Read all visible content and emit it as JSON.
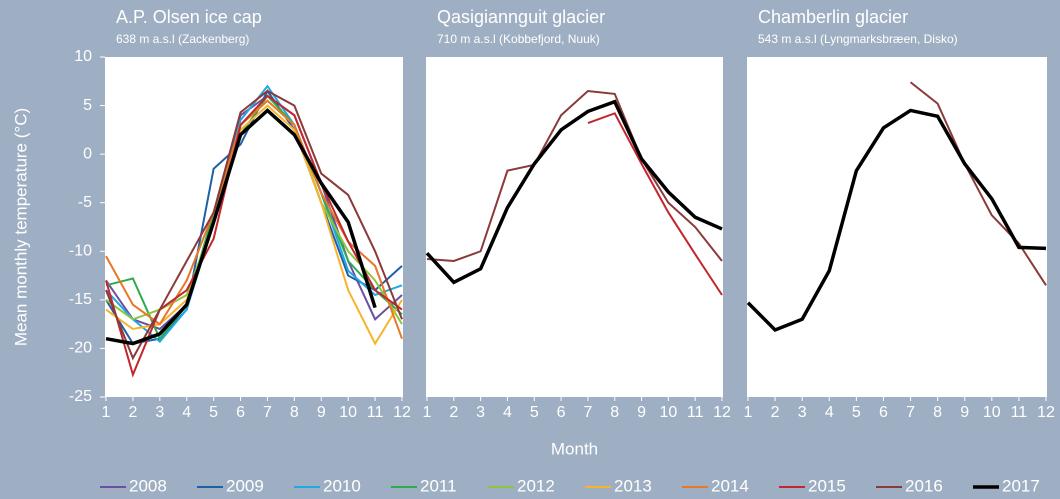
{
  "chart_data": [
    {
      "type": "line",
      "title": "A.P. Olsen ice cap",
      "subtitle": "638 m a.s.l (Zackenberg)",
      "y_label": "Mean monthly temperature (°C)",
      "x": [
        1,
        2,
        3,
        4,
        5,
        6,
        7,
        8,
        9,
        10,
        11,
        12
      ],
      "xlim": [
        1,
        12
      ],
      "xticks": [
        1,
        2,
        3,
        4,
        5,
        6,
        7,
        8,
        9,
        10,
        11,
        12
      ],
      "ylim": [
        -25,
        10
      ],
      "yticks": [
        10,
        5,
        0,
        -5,
        -10,
        -15,
        -20,
        -25
      ],
      "series": [
        {
          "name": "2008",
          "color": "#6a4fa3",
          "values": [
            -13,
            -17,
            -18,
            -15.5,
            -7,
            4,
            6,
            4,
            -3,
            -11,
            -17,
            -14.5
          ]
        },
        {
          "name": "2009",
          "color": "#1f5fa8",
          "values": [
            -15,
            -19.5,
            -19,
            -16,
            -1.5,
            1,
            6.5,
            2.5,
            -5,
            -12.5,
            -14,
            -11.5
          ]
        },
        {
          "name": "2010",
          "color": "#22a8e0",
          "values": [
            -14,
            -17,
            -19.3,
            -16,
            -7,
            3.5,
            7,
            3,
            -4,
            -12,
            -14.5,
            -13.5
          ]
        },
        {
          "name": "2011",
          "color": "#2eab4f",
          "values": [
            -13.5,
            -12.8,
            -19,
            -15.5,
            -6,
            2,
            6,
            3,
            -4,
            -11,
            -14,
            -16.5
          ]
        },
        {
          "name": "2012",
          "color": "#8cc63f",
          "values": [
            -15,
            -17,
            -16,
            -14.5,
            -7,
            3,
            5.5,
            3,
            -5,
            -10,
            -13,
            -17.5
          ]
        },
        {
          "name": "2013",
          "color": "#f7b32b",
          "values": [
            -16,
            -18,
            -17.5,
            -15,
            -7,
            2.5,
            5,
            2.5,
            -5,
            -14,
            -19.5,
            -15
          ]
        },
        {
          "name": "2014",
          "color": "#e8762b",
          "values": [
            -10.5,
            -15.5,
            -17.5,
            -13,
            -6,
            3,
            5.5,
            3,
            -4,
            -9,
            -11.5,
            -19
          ]
        },
        {
          "name": "2015",
          "color": "#c1272d",
          "values": [
            -13,
            -22.7,
            -16,
            -14,
            -8.7,
            3,
            6,
            4,
            -3,
            -9,
            -14,
            -16
          ]
        },
        {
          "name": "2016",
          "color": "#8b3a3a",
          "values": [
            -14,
            -21,
            -16,
            -11,
            -6,
            4.3,
            6.5,
            5,
            -2,
            -4.2,
            -10,
            -17
          ]
        },
        {
          "name": "2017",
          "color": "#000000",
          "values": [
            -19,
            -19.5,
            -18.5,
            -15.5,
            -7,
            2,
            4.5,
            2,
            -3,
            -7,
            -15.8,
            null
          ]
        }
      ]
    },
    {
      "type": "line",
      "title": "Qasigiannguit glacier",
      "subtitle": "710 m a.s.l (Kobbefjord, Nuuk)",
      "x_label": "Month",
      "x": [
        1,
        2,
        3,
        4,
        5,
        6,
        7,
        8,
        9,
        10,
        11,
        12
      ],
      "xlim": [
        1,
        12
      ],
      "xticks": [
        1,
        2,
        3,
        4,
        5,
        6,
        7,
        8,
        9,
        10,
        11,
        12
      ],
      "ylim": [
        -25,
        10
      ],
      "series": [
        {
          "name": "2015",
          "color": "#c1272d",
          "values": [
            null,
            null,
            null,
            null,
            null,
            null,
            3.2,
            4.2,
            -1,
            -6,
            -10.3,
            -14.5
          ]
        },
        {
          "name": "2016",
          "color": "#8b3a3a",
          "values": [
            -10.8,
            -11,
            -10,
            -1.7,
            -1.1,
            4,
            6.5,
            6.2,
            -0.5,
            -5,
            -7.5,
            -11
          ]
        },
        {
          "name": "2017",
          "color": "#000000",
          "values": [
            -10.2,
            -13.2,
            -11.8,
            -5.5,
            -1,
            2.5,
            4.4,
            5.4,
            -0.5,
            -3.9,
            -6.5,
            -7.7
          ]
        }
      ]
    },
    {
      "type": "line",
      "title": "Chamberlin glacier",
      "subtitle": "543 m a.s.l (Lyngmarksbræen, Disko)",
      "x": [
        1,
        2,
        3,
        4,
        5,
        6,
        7,
        8,
        9,
        10,
        11,
        12
      ],
      "xlim": [
        1,
        12
      ],
      "xticks": [
        1,
        2,
        3,
        4,
        5,
        6,
        7,
        8,
        9,
        10,
        11,
        12
      ],
      "ylim": [
        -25,
        10
      ],
      "series": [
        {
          "name": "2016",
          "color": "#8b3a3a",
          "values": [
            null,
            null,
            null,
            null,
            null,
            null,
            7.4,
            5.2,
            -1,
            -6.3,
            -9.2,
            -13.5
          ]
        },
        {
          "name": "2017",
          "color": "#000000",
          "values": [
            -15.3,
            -18.1,
            -17,
            -12,
            -1.7,
            2.7,
            4.5,
            3.9,
            -1,
            -4.6,
            -9.6,
            -9.7
          ]
        }
      ]
    }
  ]
}
